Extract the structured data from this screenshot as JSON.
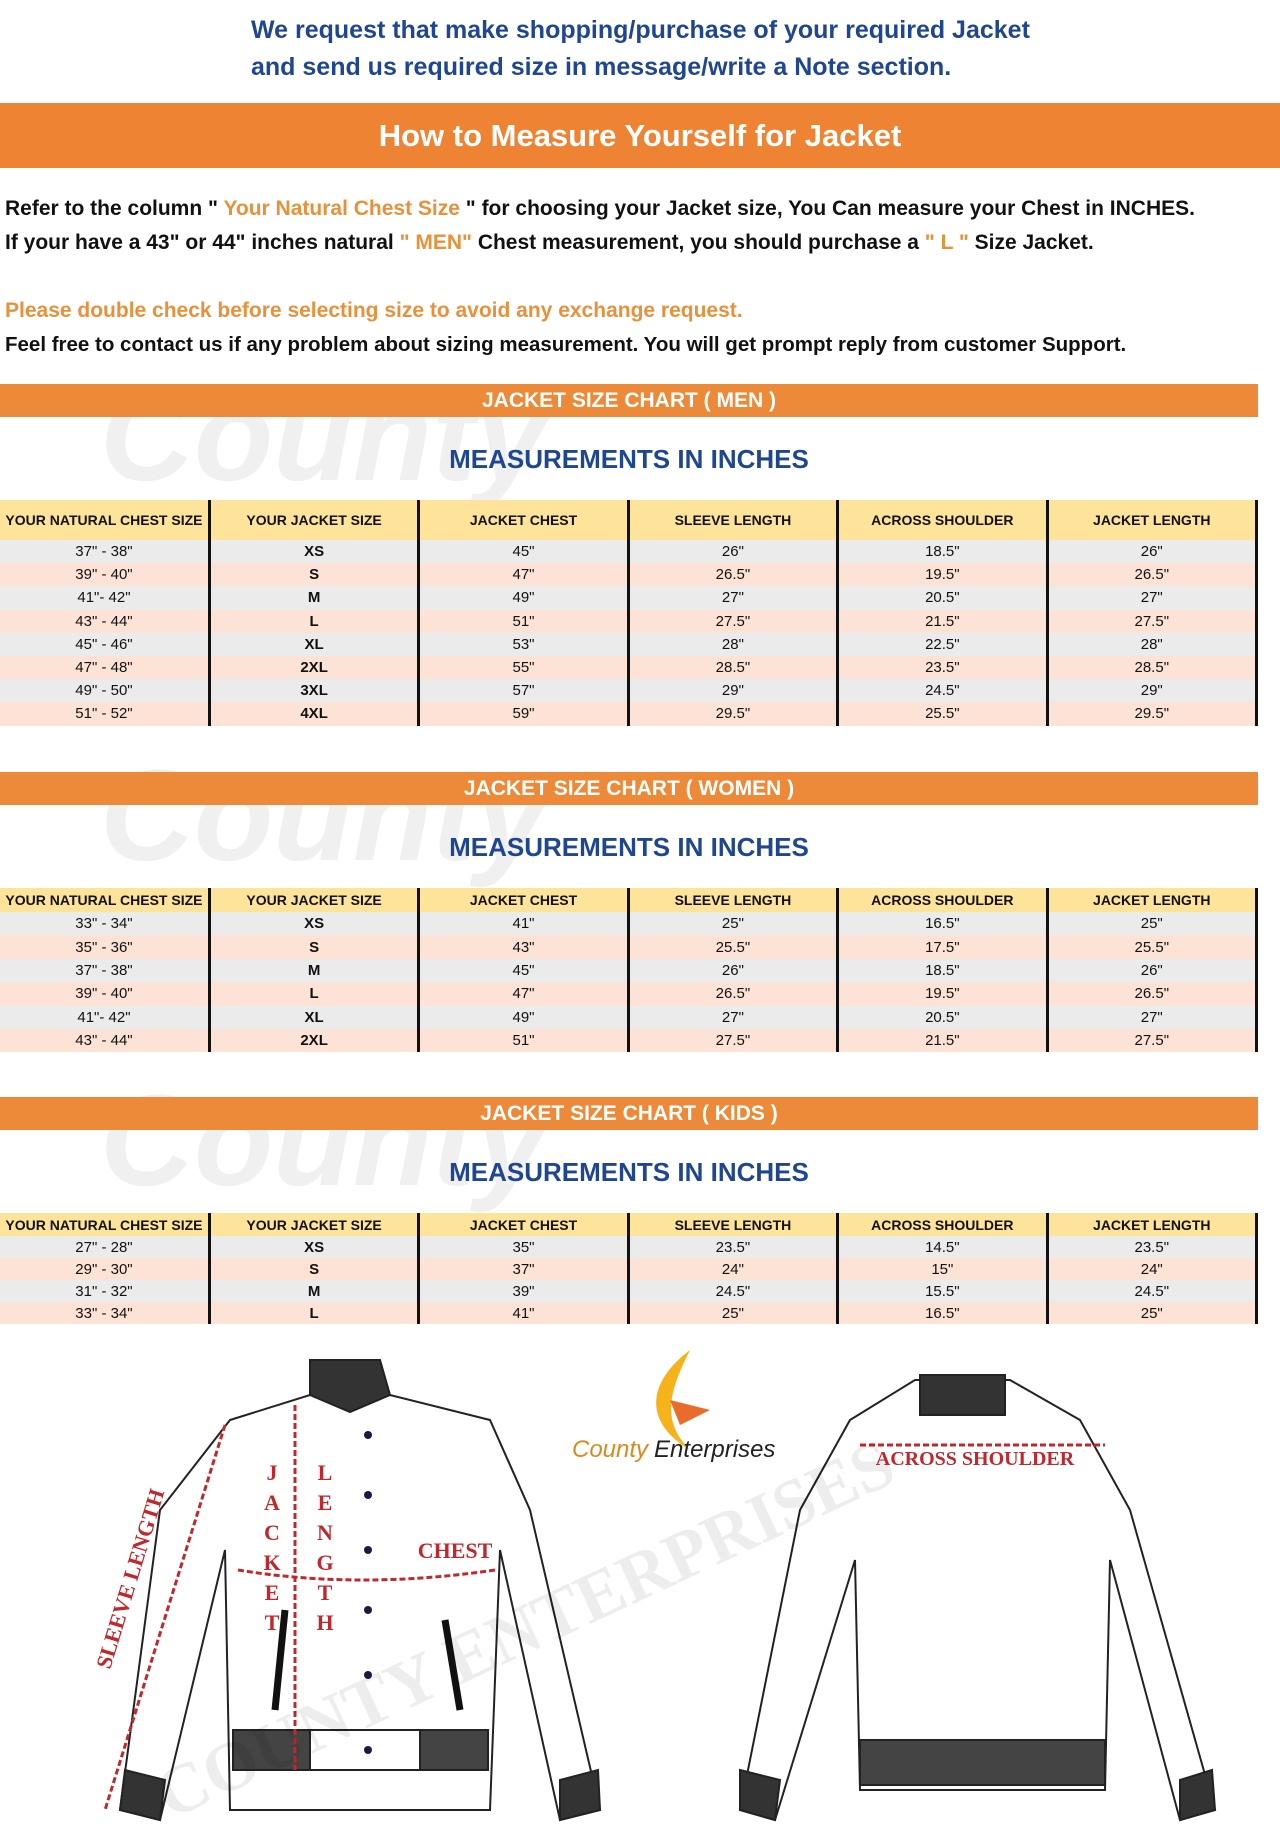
{
  "intro": {
    "line1": "We request that make shopping/purchase of your required Jacket",
    "line2": "and send us required size in message/write a Note section."
  },
  "main_title": "How to Measure Yourself for Jacket",
  "refer": {
    "p1a": "Refer to the column \" ",
    "p1b": "Your Natural Chest Size",
    "p1c": " \" for choosing your Jacket size, You Can measure your Chest in INCHES.",
    "p2a": "If your have a 43\" or 44\"  inches natural ",
    "p2b": "\" MEN\"",
    "p2c": " Chest measurement, you should purchase a ",
    "p2d": "\" L \"",
    "p2e": " Size Jacket.",
    "warn": "Please double check before selecting size to avoid any exchange request.",
    "contact": "Feel free to contact us if any problem about sizing measurement. You will get prompt reply from customer Support."
  },
  "watermark": "County",
  "columns": [
    "YOUR NATURAL CHEST SIZE",
    "YOUR JACKET SIZE",
    "JACKET CHEST",
    "SLEEVE LENGTH",
    "ACROSS SHOULDER",
    "JACKET LENGTH"
  ],
  "measurements_label": "MEASUREMENTS IN INCHES",
  "charts": [
    {
      "title": "JACKET SIZE CHART ( MEN )",
      "rows": [
        [
          "37\" - 38\"",
          "XS",
          "45\"",
          "26\"",
          "18.5\"",
          "26\""
        ],
        [
          "39\" - 40\"",
          "S",
          "47\"",
          "26.5\"",
          "19.5\"",
          "26.5\""
        ],
        [
          "41\"- 42\"",
          "M",
          "49\"",
          "27\"",
          "20.5\"",
          "27\""
        ],
        [
          "43\" - 44\"",
          "L",
          "51\"",
          "27.5\"",
          "21.5\"",
          "27.5\""
        ],
        [
          "45\" - 46\"",
          "XL",
          "53\"",
          "28\"",
          "22.5\"",
          "28\""
        ],
        [
          "47\" - 48\"",
          "2XL",
          "55\"",
          "28.5\"",
          "23.5\"",
          "28.5\""
        ],
        [
          "49\" - 50\"",
          "3XL",
          "57\"",
          "29\"",
          "24.5\"",
          "29\""
        ],
        [
          "51\" - 52\"",
          "4XL",
          "59\"",
          "29.5\"",
          "25.5\"",
          "29.5\""
        ]
      ]
    },
    {
      "title": "JACKET SIZE CHART ( WOMEN )",
      "rows": [
        [
          "33\" - 34\"",
          "XS",
          "41\"",
          "25\"",
          "16.5\"",
          "25\""
        ],
        [
          "35\" - 36\"",
          "S",
          "43\"",
          "25.5\"",
          "17.5\"",
          "25.5\""
        ],
        [
          "37\" - 38\"",
          "M",
          "45\"",
          "26\"",
          "18.5\"",
          "26\""
        ],
        [
          "39\" - 40\"",
          "L",
          "47\"",
          "26.5\"",
          "19.5\"",
          "26.5\""
        ],
        [
          "41\"- 42\"",
          "XL",
          "49\"",
          "27\"",
          "20.5\"",
          "27\""
        ],
        [
          "43\" - 44\"",
          "2XL",
          "51\"",
          "27.5\"",
          "21.5\"",
          "27.5\""
        ]
      ]
    },
    {
      "title": "JACKET SIZE CHART ( KIDS )",
      "rows": [
        [
          "27\" - 28\"",
          "XS",
          "35\"",
          "23.5\"",
          "14.5\"",
          "23.5\""
        ],
        [
          "29\" - 30\"",
          "S",
          "37\"",
          "24\"",
          "15\"",
          "24\""
        ],
        [
          "31\" - 32\"",
          "M",
          "39\"",
          "24.5\"",
          "15.5\"",
          "24.5\""
        ],
        [
          "33\" - 34\"",
          "L",
          "41\"",
          "25\"",
          "16.5\"",
          "25\""
        ]
      ]
    }
  ],
  "illustration": {
    "sleeve": "SLEEVE LENGTH",
    "jacket_letters": [
      "J",
      "A",
      "C",
      "K",
      "E",
      "T"
    ],
    "length_letters": [
      "L",
      "E",
      "N",
      "G",
      "T",
      "H"
    ],
    "chest": "CHEST",
    "shoulder": "ACROSS SHOULDER",
    "logo_a": "County",
    "logo_b": "Enterprises",
    "watermark": "COUNTY ENTERPRISES"
  },
  "colors": {
    "orange": "#ee8433",
    "blue": "#1f4690",
    "red": "#c0282d",
    "header_yellow": "#fde49a"
  }
}
